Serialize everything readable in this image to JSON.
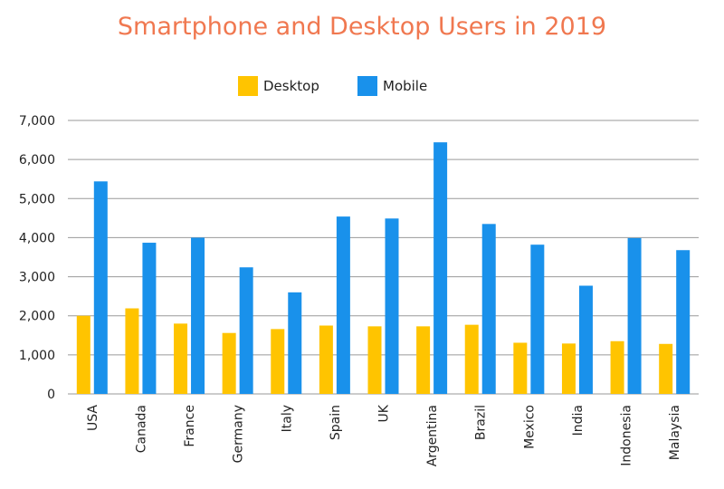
{
  "chart_data": {
    "type": "bar",
    "title": "Smartphone and Desktop Users in 2019",
    "xlabel": "",
    "ylabel": "",
    "ylim": [
      0,
      7000
    ],
    "yticks": [
      "0",
      "1,000",
      "2,000",
      "3,000",
      "4,000",
      "5,000",
      "6,000",
      "7,000"
    ],
    "grid": true,
    "legend_position": "top",
    "categories": [
      "USA",
      "Canada",
      "France",
      "Germany",
      "Italy",
      "Spain",
      "UK",
      "Argentina",
      "Brazil",
      "Mexico",
      "India",
      "Indonesia",
      "Malaysia"
    ],
    "series": [
      {
        "name": "Desktop",
        "color": "#FFC400",
        "values": [
          2000,
          2190,
          1800,
          1560,
          1660,
          1750,
          1730,
          1730,
          1770,
          1310,
          1290,
          1350,
          1280
        ]
      },
      {
        "name": "Mobile",
        "color": "#1991EB",
        "values": [
          5440,
          3870,
          4000,
          3240,
          2600,
          4540,
          4490,
          6440,
          4350,
          3820,
          2770,
          3990,
          3680
        ]
      }
    ]
  },
  "colors": {
    "title": "#F07850",
    "grid": "#9A9A9A",
    "text": "#222222"
  }
}
